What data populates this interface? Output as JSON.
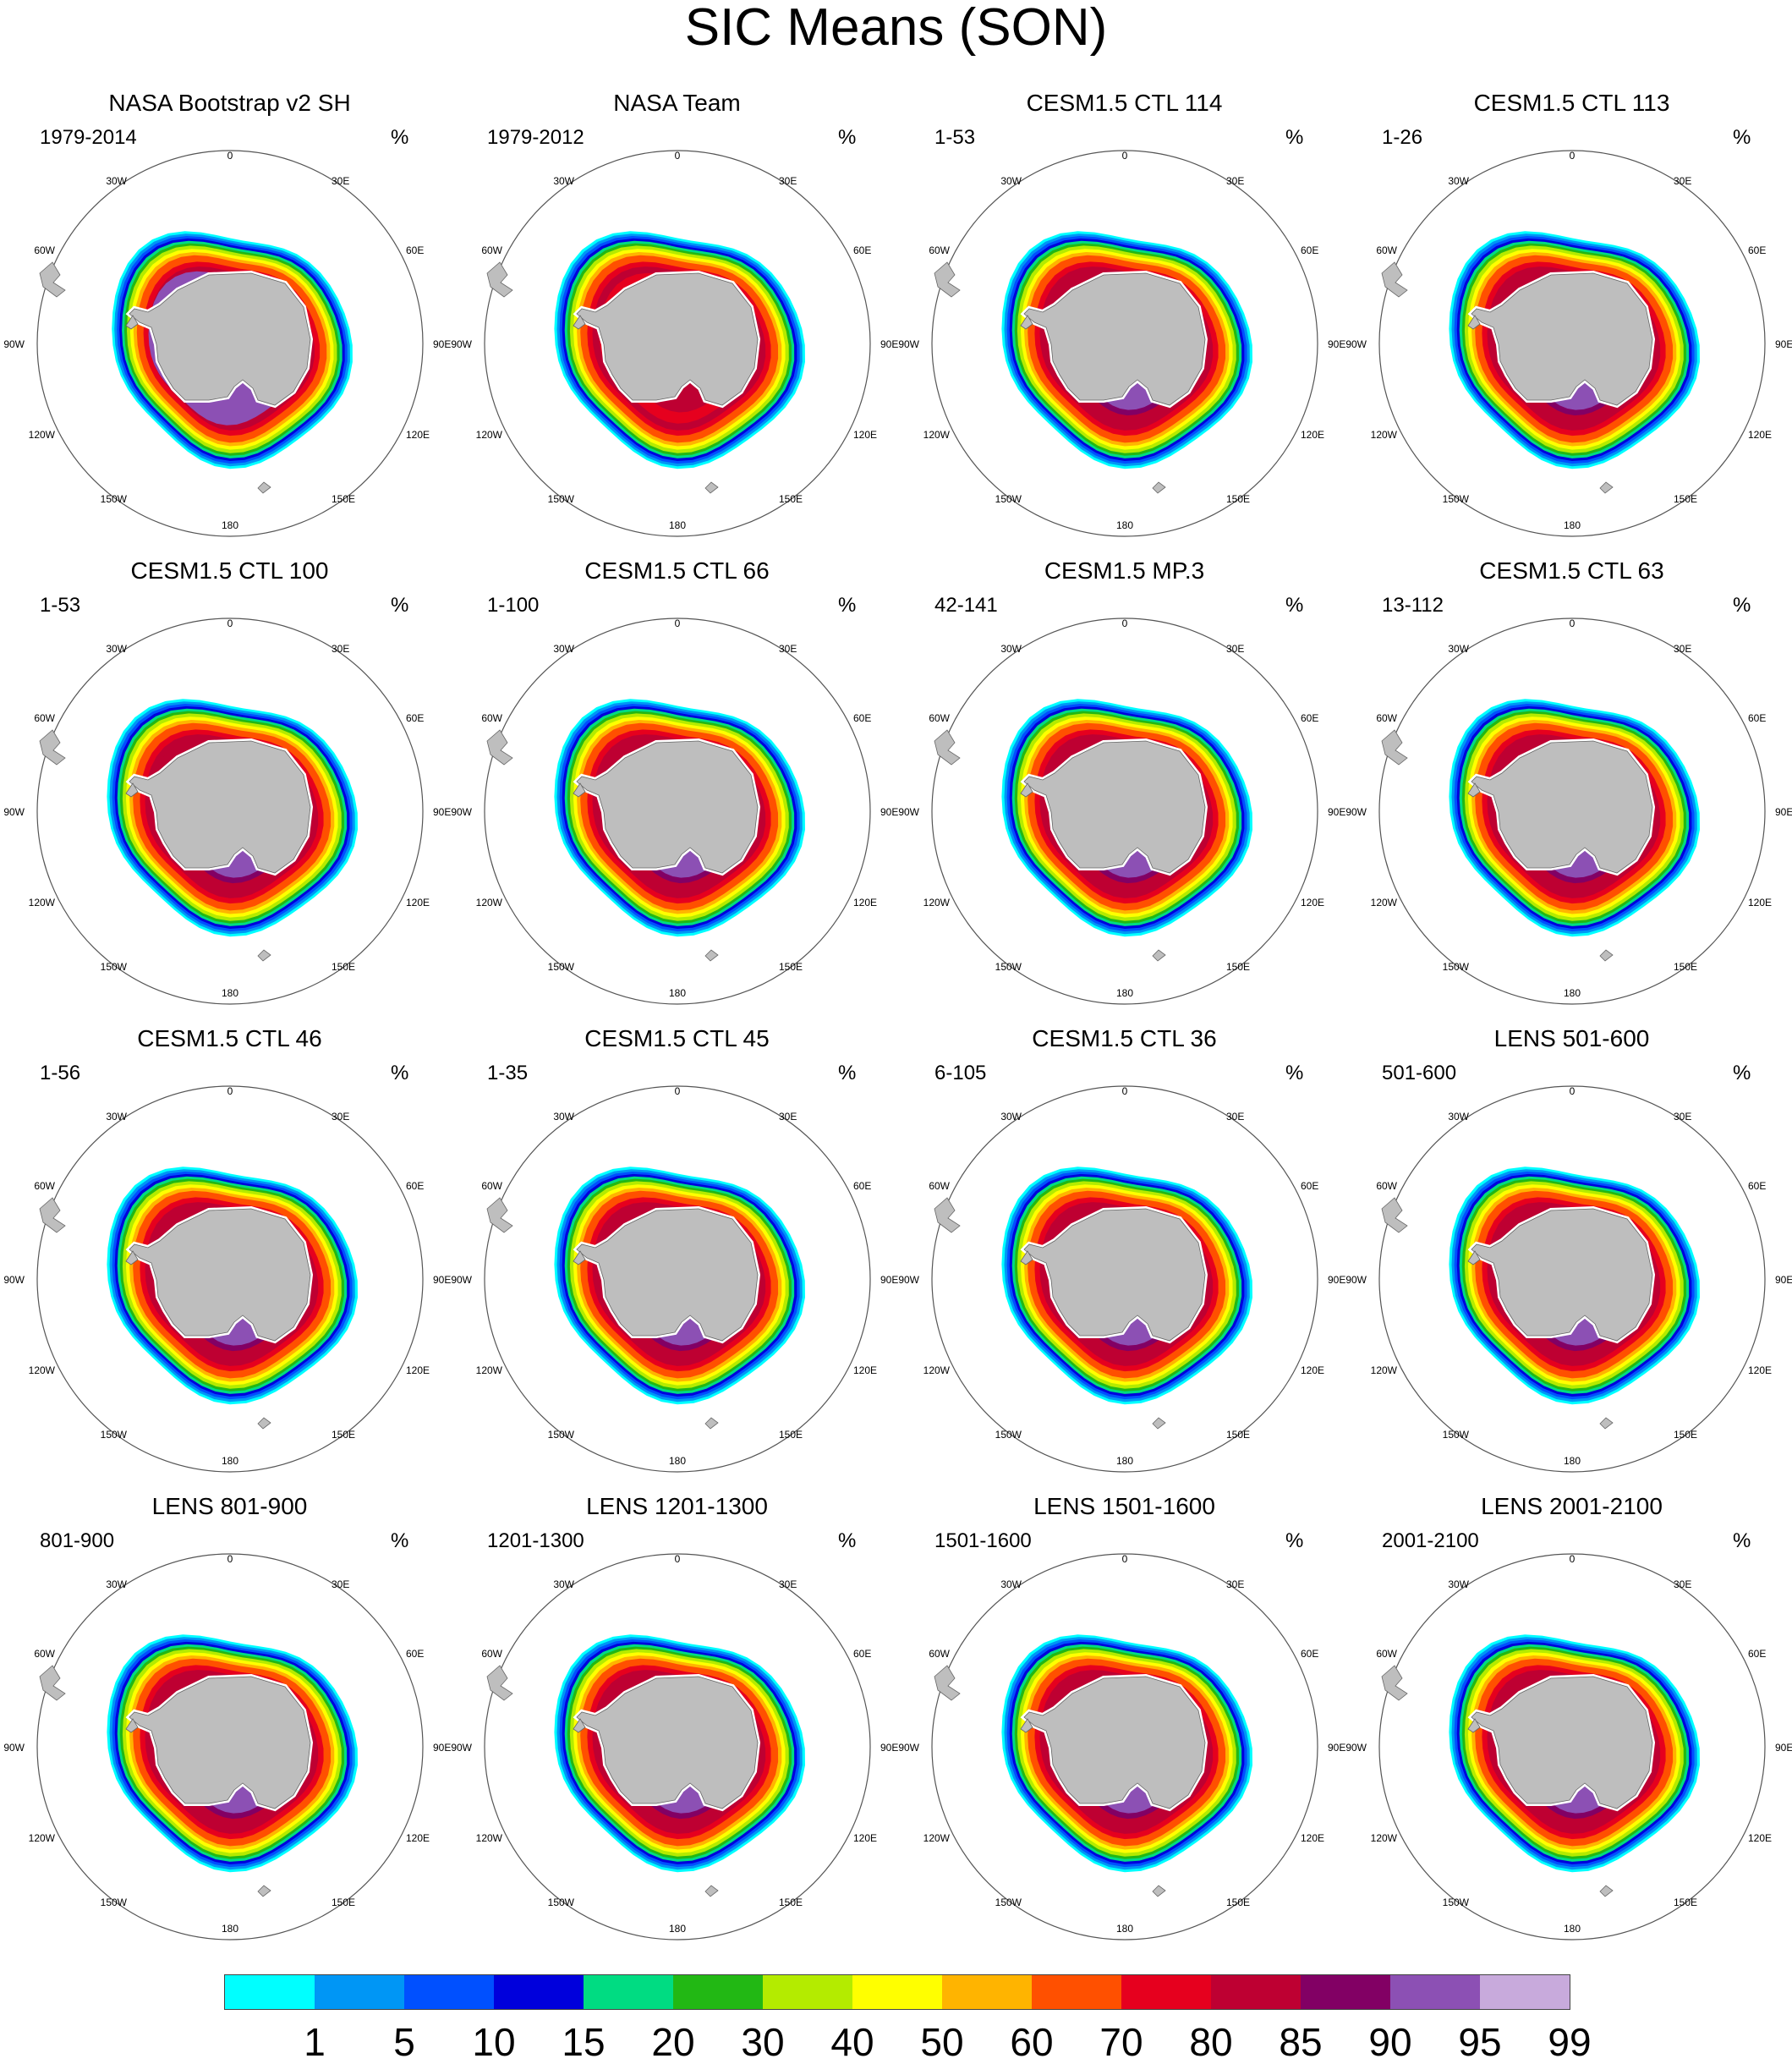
{
  "title": "SIC Means (SON)",
  "panels": [
    {
      "title": "NASA Bootstrap v2 SH",
      "years": "1979-2014",
      "units": "%",
      "style": "bootstrap"
    },
    {
      "title": "NASA Team",
      "years": "1979-2012",
      "units": "%",
      "style": "team"
    },
    {
      "title": "CESM1.5 CTL 114",
      "years": "1-53",
      "units": "%",
      "style": "model"
    },
    {
      "title": "CESM1.5 CTL 113",
      "years": "1-26",
      "units": "%",
      "style": "model"
    },
    {
      "title": "CESM1.5 CTL 100",
      "years": "1-53",
      "units": "%",
      "style": "model"
    },
    {
      "title": "CESM1.5 CTL 66",
      "years": "1-100",
      "units": "%",
      "style": "model"
    },
    {
      "title": "CESM1.5 MP.3",
      "years": "42-141",
      "units": "%",
      "style": "model"
    },
    {
      "title": "CESM1.5 CTL 63",
      "years": "13-112",
      "units": "%",
      "style": "model"
    },
    {
      "title": "CESM1.5 CTL 46",
      "years": "1-56",
      "units": "%",
      "style": "model"
    },
    {
      "title": "CESM1.5 CTL 45",
      "years": "1-35",
      "units": "%",
      "style": "model"
    },
    {
      "title": "CESM1.5 CTL 36",
      "years": "6-105",
      "units": "%",
      "style": "model"
    },
    {
      "title": "LENS 501-600",
      "years": "501-600",
      "units": "%",
      "style": "model"
    },
    {
      "title": "LENS 801-900",
      "years": "801-900",
      "units": "%",
      "style": "model"
    },
    {
      "title": "LENS 1201-1300",
      "years": "1201-1300",
      "units": "%",
      "style": "model"
    },
    {
      "title": "LENS 1501-1600",
      "years": "1501-1600",
      "units": "%",
      "style": "model"
    },
    {
      "title": "LENS 2001-2100",
      "years": "2001-2100",
      "units": "%",
      "style": "model"
    }
  ],
  "longitude_labels": [
    "0",
    "30E",
    "60E",
    "90E",
    "120E",
    "150E",
    "180",
    "150W",
    "120W",
    "90W",
    "60W",
    "30W"
  ],
  "colorbar": {
    "levels": [
      "1",
      "5",
      "10",
      "15",
      "20",
      "30",
      "40",
      "50",
      "60",
      "70",
      "80",
      "85",
      "90",
      "95",
      "99"
    ],
    "colors": [
      "#00ffff",
      "#0096f5",
      "#0050ff",
      "#0000dc",
      "#00dc82",
      "#22b814",
      "#b4eb00",
      "#ffff00",
      "#ffb400",
      "#ff5000",
      "#e6001e",
      "#be0032",
      "#820064",
      "#8c50b4",
      "#c8aadc"
    ]
  },
  "land_color": "#bebebe"
}
